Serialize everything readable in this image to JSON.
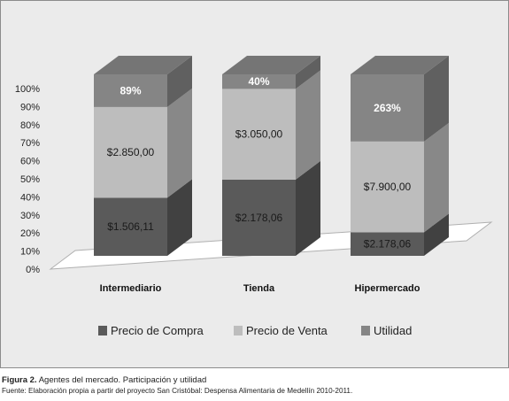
{
  "chart_data": {
    "type": "bar",
    "stacked": true,
    "percent_stacked": true,
    "three_d": true,
    "categories": [
      "Intermediario",
      "Tienda",
      "Hipermercado"
    ],
    "series": [
      {
        "name": "Precio de Compra",
        "values": [
          32,
          42,
          13
        ],
        "labels": [
          "$1.506,11",
          "$2.178,06",
          "$2.178,06"
        ]
      },
      {
        "name": "Precio de Venta",
        "values": [
          50,
          50,
          50
        ],
        "labels": [
          "$2.850,00",
          "$3.050,00",
          "$7.900,00"
        ]
      },
      {
        "name": "Utilidad",
        "values": [
          18,
          8,
          37
        ],
        "labels": [
          "89%",
          "40%",
          "263%"
        ]
      }
    ],
    "yticks": [
      "0%",
      "10%",
      "20%",
      "30%",
      "40%",
      "50%",
      "60%",
      "70%",
      "80%",
      "90%",
      "100%"
    ],
    "ylim": [
      0,
      100
    ],
    "legend_position": "bottom",
    "grid": false,
    "colors": [
      "#5a5a5a",
      "#bdbdbd",
      "#858585"
    ]
  },
  "caption": {
    "figure_label": "Figura 2.",
    "figure_title": " Agentes del mercado. Participación y utilidad",
    "source": "Fuente: Elaboración propia a partir del proyecto San Cristóbal: Despensa Alimentaria de Medellín 2010-2011."
  }
}
